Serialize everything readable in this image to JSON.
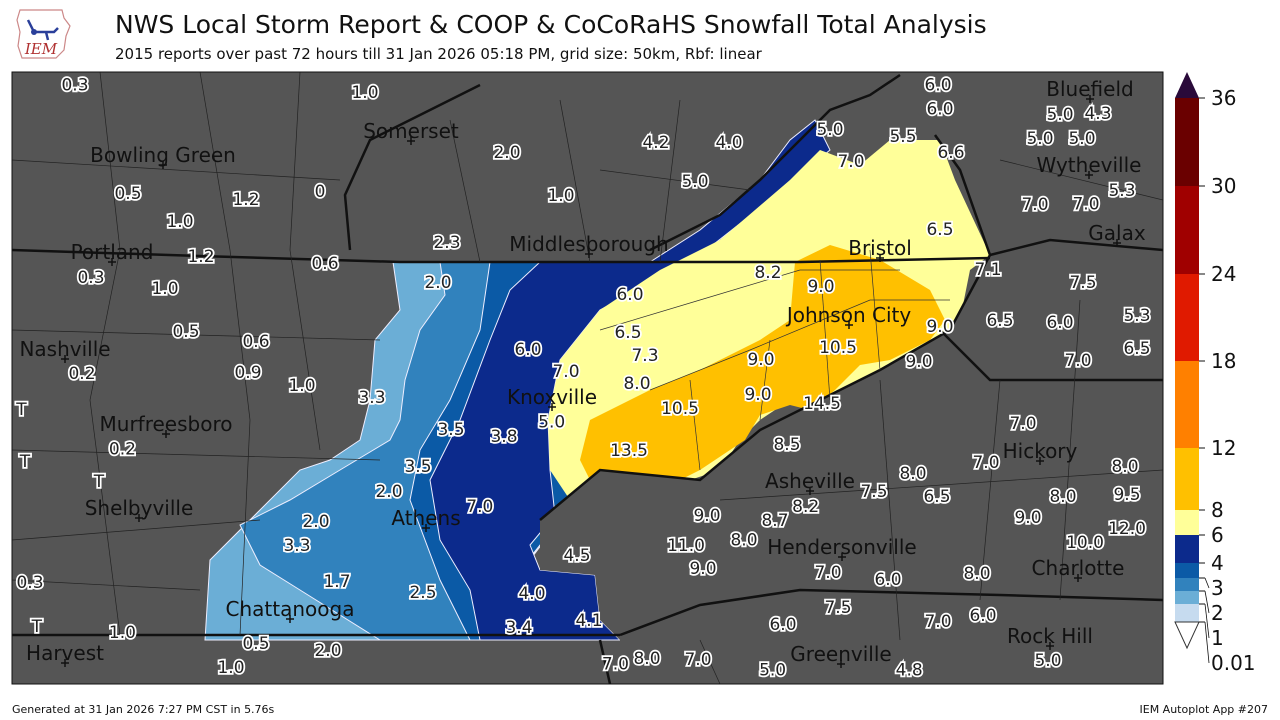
{
  "header": {
    "logo_text": "IEM",
    "title": "NWS Local Storm Report & COOP & CoCoRaHS Snowfall Total Analysis",
    "subtitle": "2015 reports over past 72 hours till 31 Jan 2026 05:18 PM, grid size: 50km, Rbf: linear"
  },
  "footer": {
    "generated": "Generated at 31 Jan 2026 7:27 PM CST in 5.76s",
    "app": "IEM Autoplot App #207"
  },
  "colorbar": {
    "ticks": [
      "0.01",
      "1",
      "2",
      "3",
      "4",
      "6",
      "8",
      "12",
      "18",
      "24",
      "30",
      "36"
    ],
    "colors": [
      "#c6dbef",
      "#6baed6",
      "#3182bd",
      "#0b5aa6",
      "#0c2a8c",
      "#ffff99",
      "#ffc000",
      "#ff8000",
      "#e01a00",
      "#a00000",
      "#6a0000"
    ],
    "over_color": "#2a0a3a",
    "under_color": "#ffffff"
  },
  "map": {
    "background": "#555555",
    "contour_colors": {
      "light": "#6baed6",
      "mid": "#3182bd",
      "dark": "#0b5aa6",
      "navy": "#0c2a8c",
      "yellow": "#ffff99",
      "orange": "#ffc000"
    },
    "towns": [
      "Somerset",
      "Bowling Green",
      "Wytheville",
      "Bluefield",
      "Galax",
      "Portland",
      "Middlesborough",
      "Bristol",
      "Johnson City",
      "Nashville",
      "Knoxville",
      "Murfreesboro",
      "Hickory",
      "Asheville",
      "Shelbyville",
      "Athens",
      "Hendersonville",
      "Charlotte",
      "Chattanooga",
      "Rock Hill",
      "Harvest",
      "Greenville"
    ],
    "reports": [
      "0.3",
      "1.0",
      "2.0",
      "4.2",
      "4.0",
      "5.0",
      "5.5",
      "6.0",
      "6.0",
      "4.3",
      "5.0",
      "6.6",
      "7.0",
      "5.0",
      "5.0",
      "5.3",
      "7.0",
      "7.0",
      "6.5",
      "0.5",
      "1.2",
      "0",
      "1.0",
      "1.0",
      "5.0",
      "2.3",
      "1.2",
      "0.6",
      "0.3",
      "1.0",
      "2.0",
      "6.0",
      "8.2",
      "9.0",
      "7.1",
      "7.5",
      "0.5",
      "0.6",
      "6.5",
      "9.0",
      "6.5",
      "6.0",
      "5.3",
      "6.5",
      "0.2",
      "0.9",
      "6.0",
      "7.3",
      "10.5",
      "9.0",
      "9.0",
      "7.0",
      "7.0",
      "1.0",
      "3.3",
      "8.0",
      "5.0",
      "10.5",
      "9.0",
      "14.5",
      "0.2",
      "3.5",
      "3.8",
      "7.0",
      "13.5",
      "8.5",
      "7.0",
      "8.0",
      "3.5",
      "8.0",
      "8.2",
      "7.5",
      "6.5",
      "8.0",
      "9.5",
      "2.0",
      "7.0",
      "2.0",
      "9.0",
      "8.7",
      "9.0",
      "12.0",
      "3.3",
      "8.0",
      "11.0",
      "7.0",
      "10.0",
      "4.5",
      "9.0",
      "8.0",
      "6.0",
      "0.3",
      "4.0",
      "2.5",
      "1.7",
      "7.5",
      "6.0",
      "7.0",
      "4.1",
      "3.4",
      "6.0",
      "5.0",
      "1.0",
      "0.5",
      "2.0",
      "8.0",
      "7.0",
      "1.0",
      "7.0",
      "5.0",
      "4.8"
    ],
    "trace_reports": [
      "T",
      "T",
      "T",
      "T"
    ]
  }
}
